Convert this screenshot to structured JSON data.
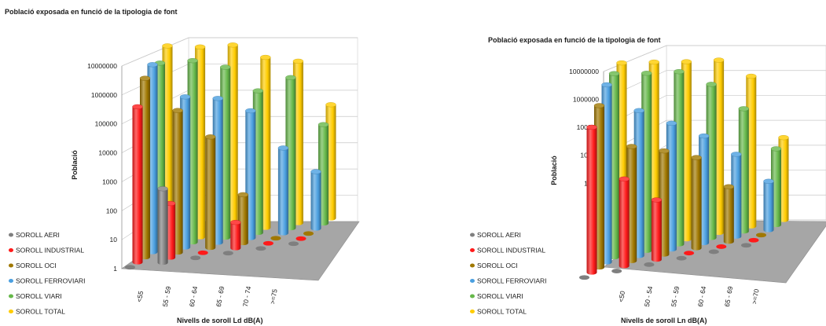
{
  "chart_data": [
    {
      "type": "bar",
      "title": "Població exposada en funció de la tipologia de font",
      "xlabel": "Nivells de soroll Ld dB(A)",
      "ylabel": "Població",
      "yscale": "log",
      "ylim": [
        1,
        10000000
      ],
      "yticks": [
        "1",
        "10",
        "100",
        "1000",
        "10000",
        "100000",
        "1000000",
        "10000000"
      ],
      "categories": [
        "<55",
        "55 - 59",
        "60 - 64",
        "65 - 69",
        "70 - 74",
        ">=75"
      ],
      "series": [
        {
          "name": "SOROLL AERI",
          "color": "#7f7f7f",
          "values": [
            1,
            400,
            1,
            1,
            1,
            1
          ]
        },
        {
          "name": "SOROLL INDUSTRIAL",
          "color": "#ff1a1a",
          "values": [
            300000,
            80,
            1,
            8,
            1,
            1
          ]
        },
        {
          "name": "SOROLL OCI",
          "color": "#a07800",
          "values": [
            2000000,
            100000,
            8000,
            50,
            1,
            1
          ]
        },
        {
          "name": "SOROLL FERROVIARI",
          "color": "#4a9fe0",
          "values": [
            4000000,
            200000,
            120000,
            30000,
            1000,
            100
          ]
        },
        {
          "name": "SOROLL VIARI",
          "color": "#66b84a",
          "values": [
            3000000,
            2500000,
            1000000,
            100000,
            200000,
            3000
          ]
        },
        {
          "name": "SOROLL TOTAL",
          "color": "#ffcc00",
          "values": [
            8000000,
            5000000,
            4000000,
            1000000,
            500000,
            10000
          ]
        }
      ]
    },
    {
      "type": "bar",
      "title": "Població exposada en funció de la tipologia de font",
      "xlabel": "Nivells de soroll Ln dB(A)",
      "ylabel": "Població",
      "yscale": "log",
      "ylim": [
        1,
        10000000
      ],
      "yticks": [
        "1",
        "10",
        "100",
        "1000",
        "10000",
        "100000",
        "1000000",
        "10000000"
      ],
      "categories": [
        "<50",
        "50 - 54",
        "55 - 59",
        "60 - 64",
        "65 - 69",
        ">=70"
      ],
      "series": [
        {
          "name": "SOROLL AERI",
          "color": "#7f7f7f",
          "values": [
            1,
            1,
            1,
            1,
            1,
            1
          ]
        },
        {
          "name": "SOROLL INDUSTRIAL",
          "color": "#ff1a1a",
          "values": [
            200000,
            1500,
            150,
            1,
            1,
            1
          ]
        },
        {
          "name": "SOROLL OCI",
          "color": "#a07800",
          "values": [
            800000,
            15000,
            6000,
            2000,
            100,
            1
          ]
        },
        {
          "name": "SOROLL FERROVIARI",
          "color": "#4a9fe0",
          "values": [
            3000000,
            200000,
            40000,
            8000,
            1000,
            60
          ]
        },
        {
          "name": "SOROLL VIARI",
          "color": "#66b84a",
          "values": [
            5000000,
            3000000,
            2000000,
            400000,
            30000,
            600
          ]
        },
        {
          "name": "SOROLL TOTAL",
          "color": "#ffcc00",
          "values": [
            8000000,
            5000000,
            3000000,
            2000000,
            300000,
            1000
          ]
        }
      ]
    }
  ]
}
